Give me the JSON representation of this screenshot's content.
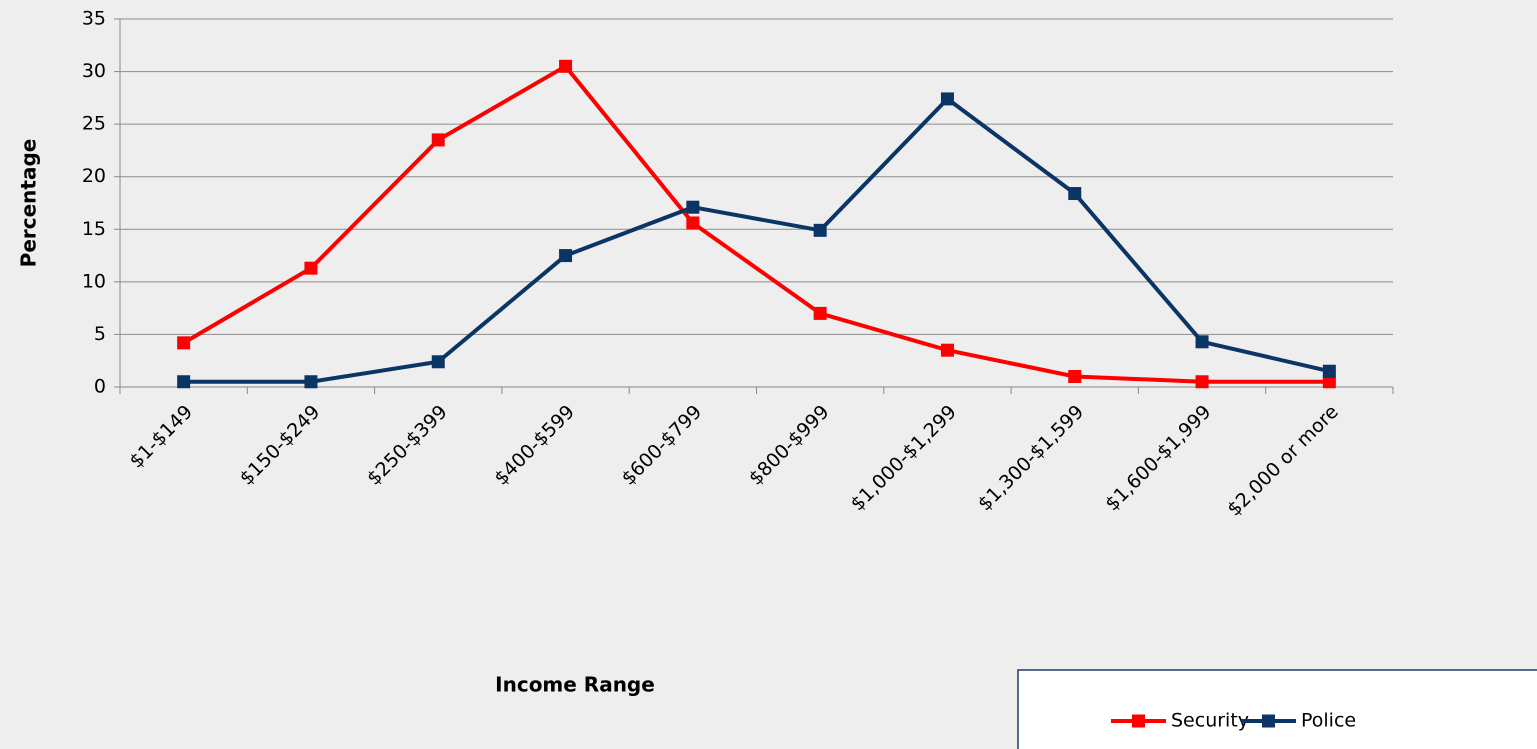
{
  "chart_data": {
    "type": "line",
    "xlabel": "Income Range",
    "ylabel": "Percentage",
    "categories": [
      "$1-$149",
      "$150-$249",
      "$250-$399",
      "$400-$599",
      "$600-$799",
      "$800-$999",
      "$1,000-$1,299",
      "$1,300-$1,599",
      "$1,600-$1,999",
      "$2,000 or more"
    ],
    "series": [
      {
        "name": "Security",
        "color": "#ff0000",
        "values": [
          4.2,
          11.3,
          23.5,
          30.5,
          15.6,
          7.0,
          3.5,
          1.0,
          0.5,
          0.5
        ]
      },
      {
        "name": "Police",
        "color": "#0a3565",
        "values": [
          0.5,
          0.5,
          2.4,
          12.5,
          17.1,
          14.9,
          27.4,
          18.4,
          4.3,
          1.5
        ]
      }
    ],
    "ylim": [
      0,
      35
    ],
    "yticks": [
      0,
      5,
      10,
      15,
      20,
      25,
      30,
      35
    ],
    "grid": true,
    "legend": "bottom-right"
  }
}
